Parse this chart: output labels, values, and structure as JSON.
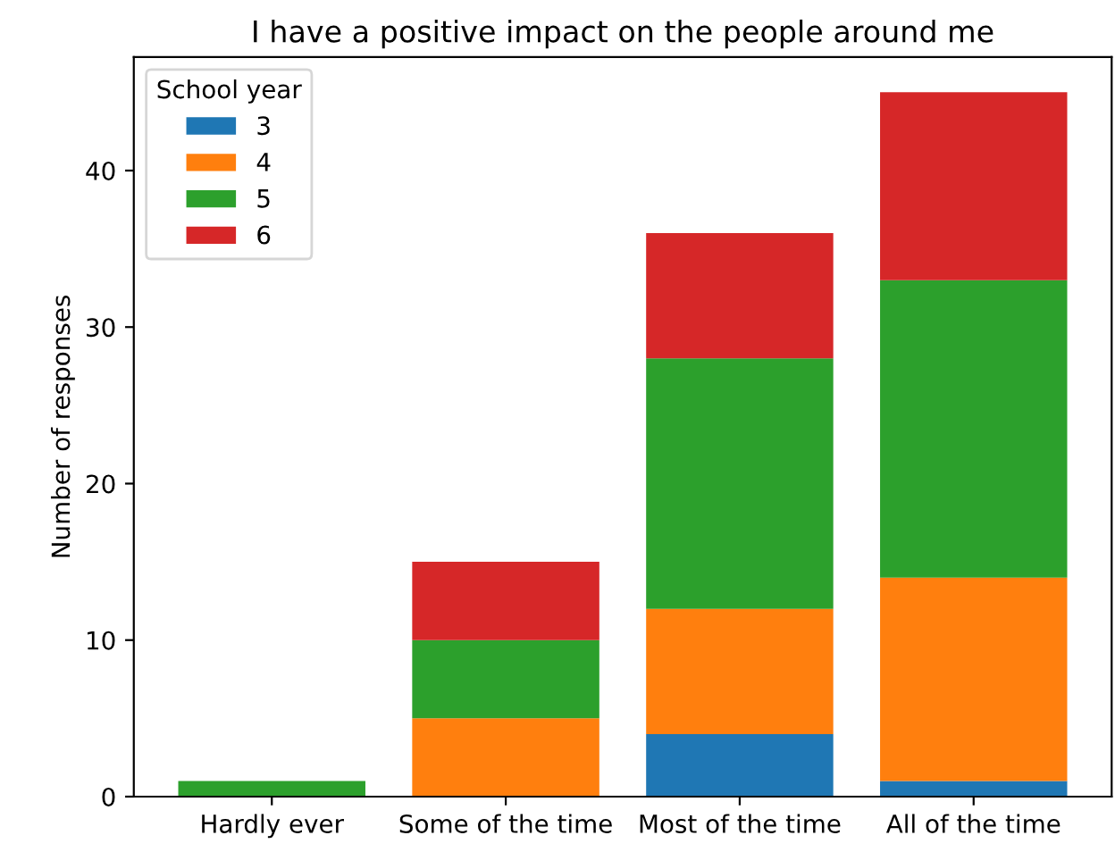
{
  "chart_data": {
    "type": "bar",
    "title": "I have a positive impact on the people around me",
    "ylabel": "Number of responses",
    "legend_title": "School year",
    "categories": [
      "Hardly ever",
      "Some of the time",
      "Most of the time",
      "All of the time"
    ],
    "stacked": true,
    "series": [
      {
        "name": "3",
        "color": "#1f77b4",
        "values": [
          0,
          0,
          4,
          1
        ]
      },
      {
        "name": "4",
        "color": "#ff7f0e",
        "values": [
          0,
          5,
          8,
          13
        ]
      },
      {
        "name": "5",
        "color": "#2ca02c",
        "values": [
          1,
          5,
          16,
          19
        ]
      },
      {
        "name": "6",
        "color": "#d62728",
        "values": [
          0,
          5,
          8,
          12
        ]
      }
    ],
    "ylim": [
      0,
      47.25
    ],
    "yticks": [
      0,
      10,
      20,
      30,
      40
    ],
    "legend": "top left",
    "grid": false
  }
}
